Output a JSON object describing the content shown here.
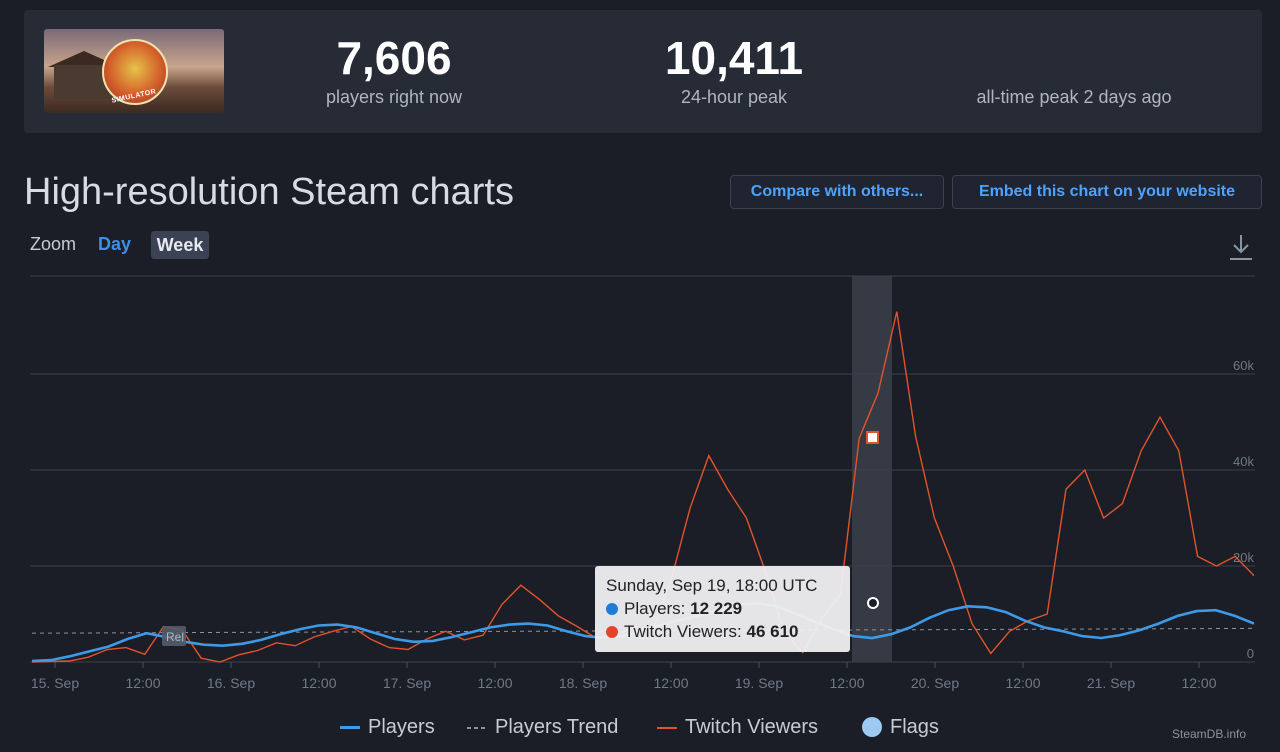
{
  "stats": {
    "current_players": "7,606",
    "current_label": "players right now",
    "peak_24h": "10,411",
    "peak_24h_label": "24-hour peak",
    "alltime_peak": "",
    "alltime_label": "all-time peak 2 days ago"
  },
  "game": {
    "badge_text": "SIMULATOR"
  },
  "title": "High-resolution Steam charts",
  "buttons": {
    "compare": "Compare with others...",
    "embed": "Embed this chart on your website"
  },
  "zoom": {
    "label": "Zoom",
    "day": "Day",
    "week": "Week"
  },
  "tooltip": {
    "date": "Sunday, Sep 19, 18:00 UTC",
    "players_label": "Players: ",
    "players_value": "12 229",
    "twitch_label": "Twitch Viewers: ",
    "twitch_value": "46 610"
  },
  "legend": {
    "players": "Players",
    "trend": "Players Trend",
    "twitch": "Twitch Viewers",
    "flags": "Flags"
  },
  "watermark": "SteamDB.info",
  "colors": {
    "players": "#3d9ae8",
    "twitch": "#e2532c",
    "trend": "#8a93a3",
    "flags": "#9ccaf2"
  },
  "chart_data": {
    "type": "line",
    "ylim": [
      0,
      80000
    ],
    "yticks": [
      "0",
      "20k",
      "40k",
      "60k"
    ],
    "xticks": [
      "15. Sep",
      "12:00",
      "16. Sep",
      "12:00",
      "17. Sep",
      "12:00",
      "18. Sep",
      "12:00",
      "19. Sep",
      "12:00",
      "20. Sep",
      "12:00",
      "21. Sep",
      "12:00"
    ],
    "series": [
      {
        "name": "Players",
        "values": [
          200,
          400,
          1200,
          2200,
          3200,
          4800,
          6000,
          5200,
          4200,
          3600,
          3400,
          3800,
          4600,
          5800,
          6800,
          7600,
          7800,
          7200,
          6000,
          4800,
          4200,
          4400,
          5200,
          6200,
          7200,
          7800,
          8000,
          7600,
          6400,
          5400,
          5000,
          5400,
          6600,
          7800,
          8800,
          9800,
          10800,
          12000,
          12229,
          11600,
          10000,
          8400,
          6800,
          5400,
          5000,
          5800,
          7200,
          9200,
          10800,
          11600,
          11400,
          10400,
          8600,
          7200,
          6400,
          5400,
          5000,
          5600,
          6600,
          8000,
          9600,
          10600,
          10800,
          9600,
          8000
        ]
      },
      {
        "name": "Twitch Viewers",
        "values": [
          0,
          100,
          200,
          1000,
          2600,
          3000,
          1600,
          7400,
          6600,
          800,
          0,
          1500,
          2400,
          4000,
          3400,
          5200,
          6400,
          7400,
          4800,
          3000,
          2600,
          4800,
          6400,
          4600,
          5600,
          12000,
          16000,
          13000,
          9600,
          7400,
          5000,
          5600,
          7200,
          6600,
          17200,
          32000,
          43000,
          36000,
          30000,
          19000,
          6200,
          2000,
          9000,
          14000,
          46610,
          56000,
          73000,
          47000,
          30000,
          20000,
          8000,
          1800,
          6400,
          8600,
          10000,
          36000,
          40000,
          30000,
          33000,
          44000,
          51000,
          44000,
          22000,
          20000,
          22000,
          18000
        ]
      },
      {
        "name": "Players Trend",
        "values": [
          6000,
          6100,
          6200,
          6300,
          6400,
          6500,
          6600,
          6700,
          6800,
          6900,
          7000
        ]
      }
    ]
  }
}
